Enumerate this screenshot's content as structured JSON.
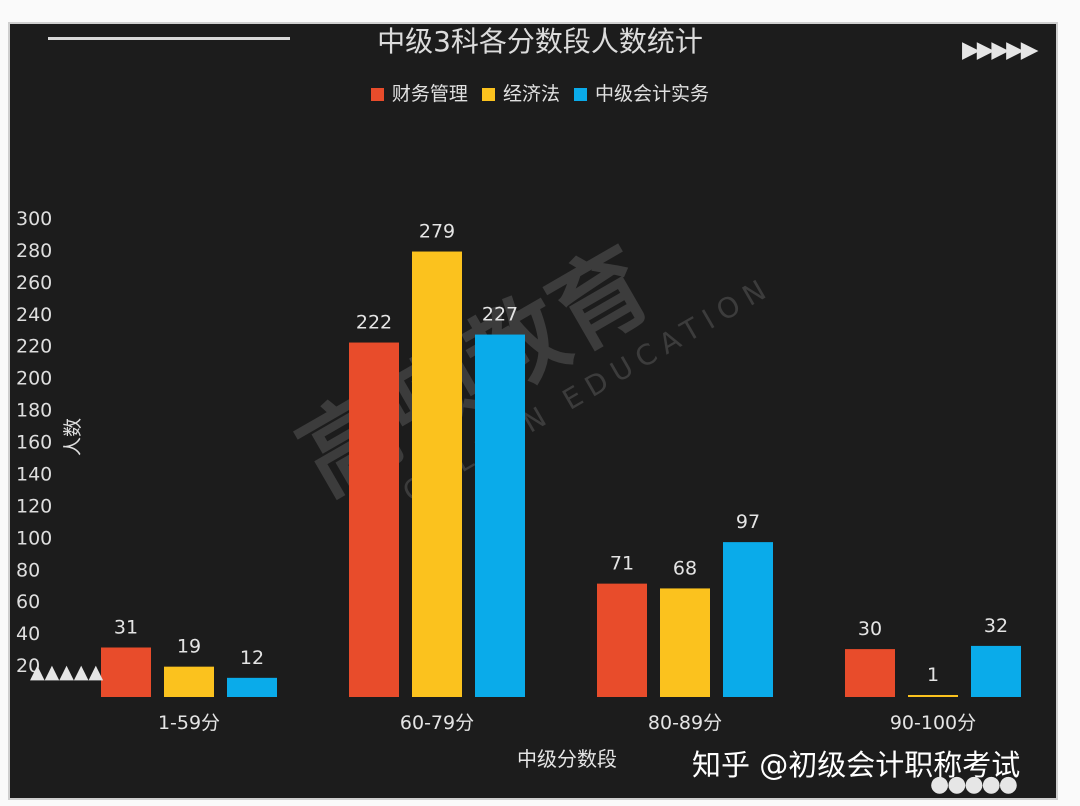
{
  "chart_data": {
    "type": "bar",
    "title": "中级3科各分数段人数统计",
    "xlabel": "中级分数段",
    "ylabel": "人数",
    "categories": [
      "1-59分",
      "60-79分",
      "80-89分",
      "90-100分"
    ],
    "series": [
      {
        "name": "财务管理",
        "color": "#e84c2b",
        "values": [
          31,
          222,
          71,
          30
        ]
      },
      {
        "name": "经济法",
        "color": "#fbc21e",
        "values": [
          19,
          279,
          68,
          1
        ]
      },
      {
        "name": "中级会计实务",
        "color": "#0aabea",
        "values": [
          12,
          227,
          97,
          32
        ]
      }
    ],
    "ylim": [
      0,
      300
    ],
    "yticks": [
      20,
      40,
      60,
      80,
      100,
      120,
      140,
      160,
      180,
      200,
      220,
      240,
      260,
      280,
      300
    ],
    "grid": false,
    "legend_position": "top-center",
    "data_labels": true
  },
  "watermark": {
    "cn": "高顿教育",
    "en": "GOLDEN EDUCATION"
  },
  "brand": "知乎 @初级会计职称考试",
  "deco": {
    "arrows": "▶▶▶▶▶",
    "triangles": "▲▲▲▲▲",
    "dots": "●●●●●"
  }
}
